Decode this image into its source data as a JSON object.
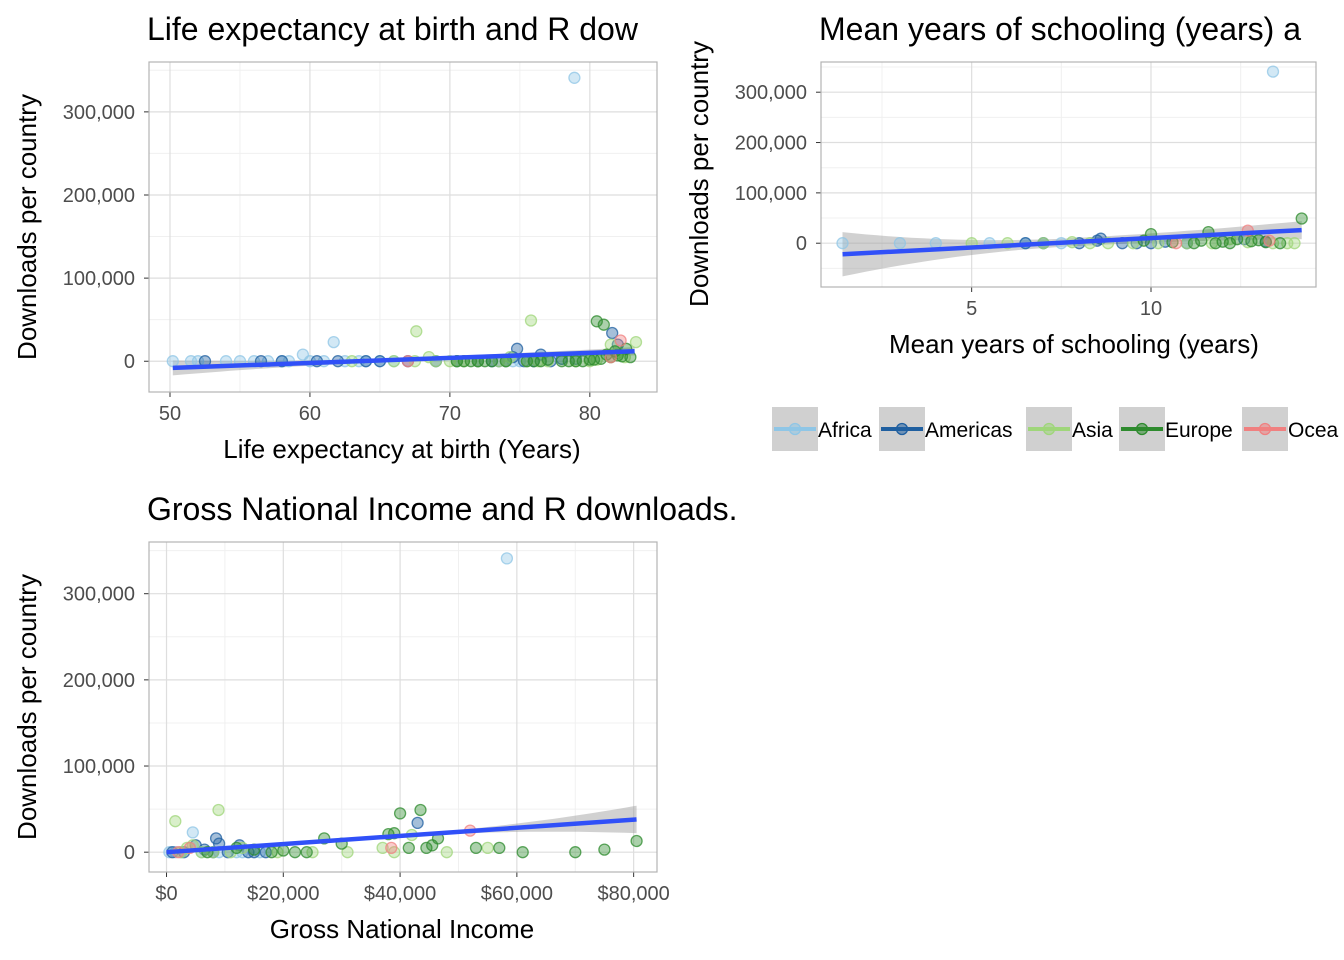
{
  "colors": {
    "Africa": "#8fc6e6",
    "Americas": "#1f5fa0",
    "Asia": "#9fd67a",
    "Europe": "#2e8b2e",
    "Oceania": "#f08080",
    "fit_line": "#3050f8",
    "ribbon": "#999999"
  },
  "legend": {
    "placement": "right-middle",
    "labels": [
      "Africa",
      "Americas",
      "Asia",
      "Europe",
      "Ocea"
    ]
  },
  "chart_data": [
    {
      "type": "scatter",
      "title": "Life expectancy at birth and R dow",
      "xlabel": "Life expectancy at birth (Years)",
      "ylabel": "Downloads per country",
      "xlim": [
        48.5,
        84.8
      ],
      "ylim": [
        -37000,
        360000
      ],
      "xticks": [
        50,
        60,
        70,
        80
      ],
      "xtick_labels": [
        "50",
        "60",
        "70",
        "80"
      ],
      "yticks": [
        0,
        100000,
        200000,
        300000
      ],
      "ytick_labels": [
        "0",
        "100,000",
        "200,000",
        "300,000"
      ],
      "grid": true,
      "fit": {
        "x": [
          50.2,
          83.2
        ],
        "y": [
          -8000,
          12000
        ],
        "ci": [
          9000,
          5000
        ]
      },
      "series": [
        {
          "name": "Africa",
          "points": [
            [
              50.2,
              0
            ],
            [
              51.5,
              0
            ],
            [
              52.0,
              0
            ],
            [
              54.0,
              0
            ],
            [
              55.0,
              0
            ],
            [
              56.0,
              0
            ],
            [
              57.0,
              0
            ],
            [
              58.0,
              0
            ],
            [
              58.5,
              0
            ],
            [
              59.5,
              8000
            ],
            [
              60.0,
              0
            ],
            [
              61.0,
              0
            ],
            [
              61.7,
              23000
            ],
            [
              62.5,
              0
            ],
            [
              63.5,
              0
            ],
            [
              64.0,
              0
            ],
            [
              65.0,
              0
            ],
            [
              66.0,
              0
            ],
            [
              74.5,
              0
            ],
            [
              75.0,
              0
            ],
            [
              78.9,
              341000
            ]
          ]
        },
        {
          "name": "Americas",
          "points": [
            [
              52.5,
              0
            ],
            [
              56.5,
              0
            ],
            [
              58.0,
              0
            ],
            [
              60.5,
              0
            ],
            [
              62.0,
              0
            ],
            [
              64.0,
              0
            ],
            [
              65.0,
              0
            ],
            [
              67.0,
              0
            ],
            [
              69.0,
              0
            ],
            [
              70.5,
              0
            ],
            [
              72.0,
              0
            ],
            [
              73.0,
              0
            ],
            [
              73.5,
              0
            ],
            [
              74.0,
              0
            ],
            [
              74.5,
              5000
            ],
            [
              74.8,
              15000
            ],
            [
              75.3,
              0
            ],
            [
              76.0,
              0
            ],
            [
              76.5,
              8000
            ],
            [
              77.2,
              0
            ],
            [
              78.0,
              3000
            ],
            [
              79.0,
              3000
            ],
            [
              81.6,
              34000
            ],
            [
              82.0,
              20000
            ]
          ]
        },
        {
          "name": "Asia",
          "points": [
            [
              63.0,
              0
            ],
            [
              66.0,
              0
            ],
            [
              67.5,
              0
            ],
            [
              67.6,
              36000
            ],
            [
              68.5,
              5000
            ],
            [
              69.0,
              0
            ],
            [
              70.0,
              0
            ],
            [
              70.5,
              0
            ],
            [
              71.0,
              0
            ],
            [
              72.0,
              0
            ],
            [
              73.5,
              0
            ],
            [
              74.0,
              0
            ],
            [
              74.3,
              5000
            ],
            [
              75.5,
              0
            ],
            [
              75.8,
              49000
            ],
            [
              76.3,
              0
            ],
            [
              77.0,
              0
            ],
            [
              79.0,
              0
            ],
            [
              80.0,
              0
            ],
            [
              80.5,
              2000
            ],
            [
              81.5,
              20000
            ],
            [
              82.0,
              10000
            ],
            [
              82.5,
              5000
            ],
            [
              83.3,
              23000
            ]
          ]
        },
        {
          "name": "Europe",
          "points": [
            [
              70.5,
              0
            ],
            [
              71.0,
              0
            ],
            [
              71.5,
              0
            ],
            [
              72.0,
              0
            ],
            [
              72.5,
              0
            ],
            [
              73.0,
              0
            ],
            [
              74.0,
              0
            ],
            [
              75.5,
              0
            ],
            [
              76.0,
              0
            ],
            [
              76.5,
              0
            ],
            [
              77.0,
              2000
            ],
            [
              78.0,
              0
            ],
            [
              78.5,
              0
            ],
            [
              79.0,
              0
            ],
            [
              79.5,
              0
            ],
            [
              80.0,
              2000
            ],
            [
              80.3,
              2000
            ],
            [
              80.5,
              48000
            ],
            [
              80.8,
              3000
            ],
            [
              81.0,
              44000
            ],
            [
              81.2,
              8000
            ],
            [
              81.5,
              5000
            ],
            [
              81.8,
              12000
            ],
            [
              82.0,
              7000
            ],
            [
              82.3,
              6000
            ],
            [
              82.6,
              15000
            ],
            [
              82.9,
              5000
            ]
          ]
        },
        {
          "name": "Oceania",
          "points": [
            [
              67.0,
              0
            ],
            [
              81.5,
              5000
            ],
            [
              82.2,
              25000
            ]
          ]
        }
      ]
    },
    {
      "type": "scatter",
      "title": "Mean years of schooling (years) a",
      "xlabel": "Mean years of schooling (years)",
      "ylabel": "Downloads per country",
      "xlim": [
        0.8,
        14.6
      ],
      "ylim": [
        -87000,
        360000
      ],
      "xticks": [
        5,
        10
      ],
      "xtick_labels": [
        "5",
        "10"
      ],
      "yticks": [
        0,
        100000,
        200000,
        300000
      ],
      "ytick_labels": [
        "0",
        "100,000",
        "200,000",
        "300,000"
      ],
      "grid": true,
      "fit": {
        "x": [
          1.4,
          14.2
        ],
        "y": [
          -22000,
          26000
        ],
        "ci": [
          44000,
          18000
        ]
      },
      "series": [
        {
          "name": "Africa",
          "points": [
            [
              1.4,
              0
            ],
            [
              3.0,
              0
            ],
            [
              4.0,
              0
            ],
            [
              5.5,
              0
            ],
            [
              6.5,
              0
            ],
            [
              7.5,
              0
            ],
            [
              13.4,
              341000
            ]
          ]
        },
        {
          "name": "Americas",
          "points": [
            [
              6.5,
              0
            ],
            [
              7.0,
              0
            ],
            [
              8.0,
              0
            ],
            [
              8.5,
              5000
            ],
            [
              8.6,
              9000
            ],
            [
              9.2,
              0
            ],
            [
              9.6,
              0
            ],
            [
              10.0,
              0
            ],
            [
              10.4,
              3000
            ],
            [
              11.0,
              0
            ],
            [
              12.6,
              8000
            ],
            [
              13.2,
              3000
            ]
          ]
        },
        {
          "name": "Asia",
          "points": [
            [
              5.0,
              0
            ],
            [
              6.0,
              0
            ],
            [
              7.0,
              0
            ],
            [
              7.8,
              2000
            ],
            [
              8.3,
              0
            ],
            [
              8.8,
              0
            ],
            [
              9.5,
              0
            ],
            [
              10.2,
              0
            ],
            [
              11.0,
              0
            ],
            [
              11.7,
              0
            ],
            [
              12.2,
              8000
            ],
            [
              12.7,
              2000
            ],
            [
              13.4,
              0
            ],
            [
              13.8,
              0
            ],
            [
              14.0,
              0
            ]
          ]
        },
        {
          "name": "Europe",
          "points": [
            [
              9.8,
              5000
            ],
            [
              10.0,
              18000
            ],
            [
              10.6,
              2000
            ],
            [
              11.2,
              0
            ],
            [
              11.4,
              5000
            ],
            [
              11.6,
              22000
            ],
            [
              11.8,
              0
            ],
            [
              12.0,
              3000
            ],
            [
              12.2,
              0
            ],
            [
              12.4,
              8000
            ],
            [
              12.8,
              4000
            ],
            [
              13.0,
              6000
            ],
            [
              13.2,
              2000
            ],
            [
              13.6,
              0
            ],
            [
              14.2,
              49000
            ]
          ]
        },
        {
          "name": "Oceania",
          "points": [
            [
              10.7,
              0
            ],
            [
              12.7,
              25000
            ],
            [
              13.3,
              5000
            ]
          ]
        }
      ]
    },
    {
      "type": "scatter",
      "title": "Gross National Income and R downloads.",
      "xlabel": "Gross National Income",
      "ylabel": "Downloads per country",
      "xlim": [
        -3000,
        84000
      ],
      "ylim": [
        -23000,
        360000
      ],
      "xticks": [
        0,
        20000,
        40000,
        60000,
        80000
      ],
      "xtick_labels": [
        "$0",
        "$20,000",
        "$40,000",
        "$60,000",
        "$80,000"
      ],
      "yticks": [
        0,
        100000,
        200000,
        300000
      ],
      "ytick_labels": [
        "0",
        "100,000",
        "200,000",
        "300,000"
      ],
      "grid": true,
      "fit": {
        "x": [
          0,
          80500
        ],
        "y": [
          0,
          38000
        ],
        "ci": [
          3000,
          16000
        ]
      },
      "series": [
        {
          "name": "Africa",
          "points": [
            [
              500,
              0
            ],
            [
              1500,
              0
            ],
            [
              2500,
              0
            ],
            [
              4500,
              23000
            ],
            [
              6000,
              0
            ],
            [
              9000,
              0
            ],
            [
              12000,
              0
            ],
            [
              13000,
              0
            ],
            [
              16000,
              0
            ],
            [
              58300,
              341000
            ]
          ]
        },
        {
          "name": "Americas",
          "points": [
            [
              1000,
              0
            ],
            [
              3000,
              0
            ],
            [
              5000,
              8000
            ],
            [
              6500,
              3000
            ],
            [
              8000,
              0
            ],
            [
              8500,
              16000
            ],
            [
              9000,
              10000
            ],
            [
              10500,
              0
            ],
            [
              12500,
              8000
            ],
            [
              14000,
              0
            ],
            [
              15000,
              0
            ],
            [
              17000,
              0
            ],
            [
              43000,
              34000
            ]
          ]
        },
        {
          "name": "Asia",
          "points": [
            [
              1500,
              36000
            ],
            [
              2500,
              0
            ],
            [
              3500,
              5000
            ],
            [
              4500,
              8000
            ],
            [
              6000,
              0
            ],
            [
              8000,
              0
            ],
            [
              8900,
              49000
            ],
            [
              11000,
              0
            ],
            [
              13000,
              5000
            ],
            [
              19000,
              0
            ],
            [
              25000,
              0
            ],
            [
              31000,
              0
            ],
            [
              37000,
              5000
            ],
            [
              39000,
              0
            ],
            [
              42000,
              20000
            ],
            [
              48000,
              0
            ],
            [
              55000,
              5000
            ]
          ]
        },
        {
          "name": "Europe",
          "points": [
            [
              7000,
              0
            ],
            [
              12000,
              5000
            ],
            [
              15000,
              3000
            ],
            [
              18000,
              0
            ],
            [
              20000,
              2000
            ],
            [
              22000,
              0
            ],
            [
              24000,
              0
            ],
            [
              27000,
              16000
            ],
            [
              30000,
              10000
            ],
            [
              38000,
              21000
            ],
            [
              39000,
              22000
            ],
            [
              40000,
              45000
            ],
            [
              41500,
              5000
            ],
            [
              43500,
              49000
            ],
            [
              44500,
              5000
            ],
            [
              45500,
              8000
            ],
            [
              46500,
              16000
            ],
            [
              53000,
              5000
            ],
            [
              57000,
              5000
            ],
            [
              61000,
              0
            ],
            [
              70000,
              0
            ],
            [
              75000,
              3000
            ],
            [
              80500,
              13000
            ]
          ]
        },
        {
          "name": "Oceania",
          "points": [
            [
              2000,
              0
            ],
            [
              4000,
              5000
            ],
            [
              38500,
              5000
            ],
            [
              52000,
              25000
            ]
          ]
        }
      ]
    }
  ]
}
